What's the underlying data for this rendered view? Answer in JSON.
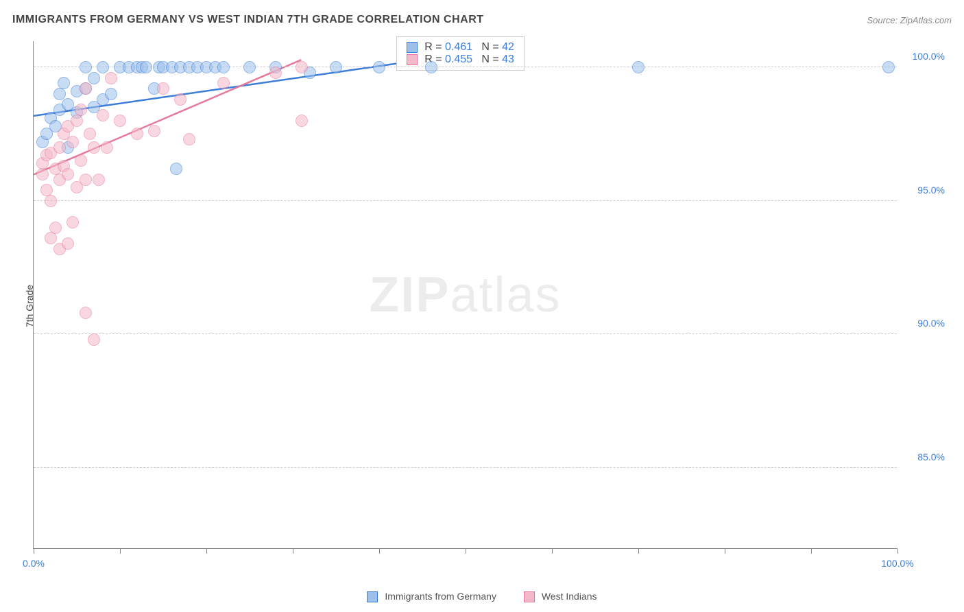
{
  "title": "IMMIGRANTS FROM GERMANY VS WEST INDIAN 7TH GRADE CORRELATION CHART",
  "source": "Source: ZipAtlas.com",
  "yaxis_title": "7th Grade",
  "watermark_bold": "ZIP",
  "watermark_light": "atlas",
  "chart": {
    "type": "scatter",
    "xlim": [
      0,
      100
    ],
    "ylim": [
      82,
      101
    ],
    "x_ticks": [
      0,
      10,
      20,
      30,
      40,
      50,
      60,
      70,
      80,
      90,
      100
    ],
    "x_tick_labels": {
      "0": "0.0%",
      "100": "100.0%"
    },
    "y_ticks": [
      85,
      90,
      95,
      100
    ],
    "y_tick_labels": {
      "85": "85.0%",
      "90": "90.0%",
      "95": "95.0%",
      "100": "100.0%"
    },
    "x_label_color": "#3b7dd8",
    "y_label_color": "#3b7dd8",
    "grid_color": "#cccccc",
    "background_color": "#ffffff",
    "marker_radius": 9,
    "marker_opacity": 0.55,
    "trend_width": 2.5
  },
  "series": [
    {
      "name": "Immigrants from Germany",
      "fill": "#9cc0ea",
      "stroke": "#3b7dd8",
      "R": "0.461",
      "N": "42",
      "trend": {
        "x1": 0,
        "y1": 98.2,
        "x2": 45,
        "y2": 100.3
      },
      "points": [
        [
          1,
          97.2
        ],
        [
          1.5,
          97.5
        ],
        [
          2,
          98.1
        ],
        [
          2.5,
          97.8
        ],
        [
          3,
          98.4
        ],
        [
          3,
          99.0
        ],
        [
          3.5,
          99.4
        ],
        [
          4,
          97.0
        ],
        [
          4,
          98.6
        ],
        [
          5,
          98.3
        ],
        [
          5,
          99.1
        ],
        [
          6,
          99.2
        ],
        [
          6,
          100.0
        ],
        [
          7,
          98.5
        ],
        [
          7,
          99.6
        ],
        [
          8,
          98.8
        ],
        [
          8,
          100.0
        ],
        [
          9,
          99.0
        ],
        [
          10,
          100.0
        ],
        [
          11,
          100.0
        ],
        [
          12,
          100.0
        ],
        [
          12.5,
          100.0
        ],
        [
          13,
          100.0
        ],
        [
          14,
          99.2
        ],
        [
          14.5,
          100.0
        ],
        [
          15,
          100.0
        ],
        [
          16,
          100.0
        ],
        [
          16.5,
          96.2
        ],
        [
          17,
          100.0
        ],
        [
          18,
          100.0
        ],
        [
          19,
          100.0
        ],
        [
          20,
          100.0
        ],
        [
          21,
          100.0
        ],
        [
          22,
          100.0
        ],
        [
          25,
          100.0
        ],
        [
          28,
          100.0
        ],
        [
          32,
          99.8
        ],
        [
          35,
          100.0
        ],
        [
          40,
          100.0
        ],
        [
          46,
          100.0
        ],
        [
          70,
          100.0
        ],
        [
          99,
          100.0
        ]
      ]
    },
    {
      "name": "West Indians",
      "fill": "#f5b8c9",
      "stroke": "#e6789a",
      "R": "0.455",
      "N": "43",
      "trend": {
        "x1": 0,
        "y1": 96.0,
        "x2": 31,
        "y2": 100.3
      },
      "points": [
        [
          1,
          96.0
        ],
        [
          1,
          96.4
        ],
        [
          1.5,
          95.4
        ],
        [
          1.5,
          96.7
        ],
        [
          2,
          93.6
        ],
        [
          2,
          95.0
        ],
        [
          2,
          96.8
        ],
        [
          2.5,
          94.0
        ],
        [
          2.5,
          96.2
        ],
        [
          3,
          93.2
        ],
        [
          3,
          95.8
        ],
        [
          3,
          97.0
        ],
        [
          3.5,
          96.3
        ],
        [
          3.5,
          97.5
        ],
        [
          4,
          93.4
        ],
        [
          4,
          96.0
        ],
        [
          4,
          97.8
        ],
        [
          4.5,
          94.2
        ],
        [
          4.5,
          97.2
        ],
        [
          5,
          95.5
        ],
        [
          5,
          98.0
        ],
        [
          5.5,
          96.5
        ],
        [
          5.5,
          98.4
        ],
        [
          6,
          90.8
        ],
        [
          6,
          95.8
        ],
        [
          6,
          99.2
        ],
        [
          6.5,
          97.5
        ],
        [
          7,
          89.8
        ],
        [
          7,
          97.0
        ],
        [
          7.5,
          95.8
        ],
        [
          8,
          98.2
        ],
        [
          8.5,
          97.0
        ],
        [
          9,
          99.6
        ],
        [
          10,
          98.0
        ],
        [
          12,
          97.5
        ],
        [
          14,
          97.6
        ],
        [
          15,
          99.2
        ],
        [
          17,
          98.8
        ],
        [
          18,
          97.3
        ],
        [
          22,
          99.4
        ],
        [
          28,
          99.8
        ],
        [
          31,
          98.0
        ],
        [
          31,
          100.0
        ]
      ]
    }
  ],
  "legend": {
    "s1_label": "Immigrants from Germany",
    "s2_label": "West Indians"
  },
  "statbox": {
    "r_prefix": "R = ",
    "n_prefix": "N = "
  }
}
